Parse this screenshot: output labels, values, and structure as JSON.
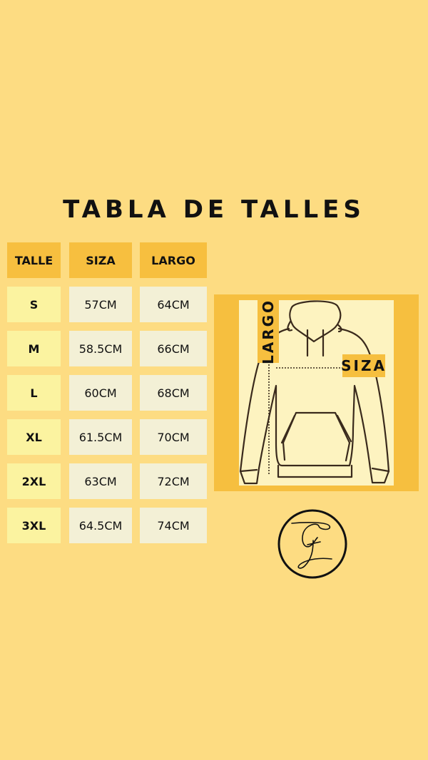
{
  "title": "TABLA DE TALLES",
  "table": {
    "headers": [
      "TALLE",
      "SIZA",
      "LARGO"
    ],
    "rows": [
      [
        "S",
        "57CM",
        "64CM"
      ],
      [
        "M",
        "58.5CM",
        "66CM"
      ],
      [
        "L",
        "60CM",
        "68CM"
      ],
      [
        "XL",
        "61.5CM",
        "70CM"
      ],
      [
        "2XL",
        "63CM",
        "72CM"
      ],
      [
        "3XL",
        "64.5CM",
        "74CM"
      ]
    ]
  },
  "diagram": {
    "largo_label": "LARGO",
    "siza_label": "SIZA"
  },
  "logo": {
    "monogram": "G"
  },
  "colors": {
    "background": "#fddc82",
    "header": "#f7bf3f",
    "talle_cell": "#fbf3a0",
    "value_cell": "#f3f0d6",
    "panel": "#f6bf3f"
  }
}
